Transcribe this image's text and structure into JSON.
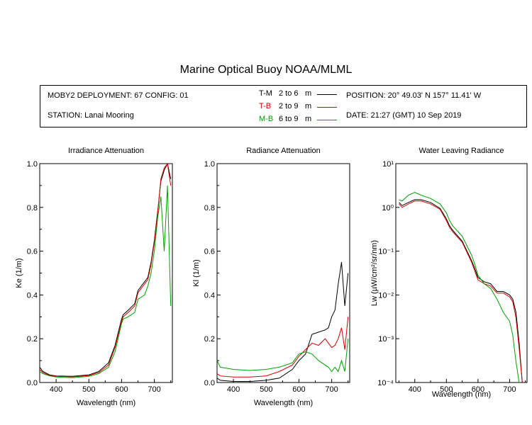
{
  "page_title": "Marine Optical Buoy NOAA/MLML",
  "info": {
    "deployment": "MOBY2 DEPLOYMENT: 67 CONFIG: 01",
    "station": "STATION: Lanai Mooring",
    "position": "POSITION: 20° 49.03' N   157° 11.41' W",
    "date": "DATE: 21:27 (GMT) 10 Sep 2019"
  },
  "legend": [
    {
      "code": "T-M",
      "range": "2 to 6",
      "unit": "m",
      "color": "#000000"
    },
    {
      "code": "T-B",
      "range": "2 to 9",
      "unit": "m",
      "color": "#d40000"
    },
    {
      "code": "M-B",
      "range": "6 to 9",
      "unit": "m",
      "color": "#00a000"
    }
  ],
  "chart_data": [
    {
      "type": "line",
      "title": "Irradiance Attenuation",
      "xlabel": "Wavelength (nm)",
      "ylabel": "Ke  (1/m)",
      "xlim": [
        350,
        755
      ],
      "ylim": [
        0,
        1
      ],
      "xticks": [
        "400",
        "500",
        "600",
        "700"
      ],
      "yticks": [
        "0.0",
        "0.2",
        "0.4",
        "0.6",
        "0.8",
        "1.0"
      ],
      "series": [
        {
          "name": "T-M",
          "color": "#000000",
          "x": [
            350,
            360,
            380,
            400,
            450,
            500,
            530,
            560,
            580,
            600,
            605,
            620,
            640,
            650,
            660,
            670,
            680,
            690,
            700,
            710,
            720,
            730,
            740,
            750
          ],
          "y": [
            0.07,
            0.05,
            0.035,
            0.03,
            0.028,
            0.035,
            0.05,
            0.09,
            0.17,
            0.29,
            0.31,
            0.33,
            0.36,
            0.42,
            0.44,
            0.46,
            0.48,
            0.55,
            0.65,
            0.78,
            0.92,
            0.97,
            1.0,
            0.93
          ]
        },
        {
          "name": "T-B",
          "color": "#d40000",
          "x": [
            350,
            360,
            380,
            400,
            450,
            500,
            530,
            560,
            580,
            600,
            605,
            620,
            640,
            650,
            660,
            670,
            680,
            690,
            700,
            710,
            720,
            730,
            740,
            750
          ],
          "y": [
            0.06,
            0.045,
            0.032,
            0.028,
            0.026,
            0.032,
            0.045,
            0.08,
            0.16,
            0.28,
            0.3,
            0.32,
            0.35,
            0.41,
            0.43,
            0.45,
            0.47,
            0.54,
            0.64,
            0.77,
            0.93,
            0.98,
            1.0,
            0.9
          ]
        },
        {
          "name": "M-B",
          "color": "#00a000",
          "x": [
            350,
            360,
            380,
            400,
            450,
            500,
            530,
            560,
            580,
            600,
            605,
            620,
            640,
            650,
            660,
            670,
            680,
            690,
            700,
            710,
            720,
            730,
            740,
            750
          ],
          "y": [
            0.05,
            0.04,
            0.03,
            0.025,
            0.022,
            0.028,
            0.04,
            0.07,
            0.14,
            0.27,
            0.29,
            0.3,
            0.32,
            0.38,
            0.39,
            0.4,
            0.44,
            0.5,
            0.6,
            0.75,
            0.85,
            0.6,
            0.9,
            0.35
          ]
        }
      ]
    },
    {
      "type": "line",
      "title": "Radiance Attenuation",
      "xlabel": "Wavelength (nm)",
      "ylabel": "Kl  (1/m)",
      "xlim": [
        350,
        755
      ],
      "ylim": [
        0,
        1
      ],
      "xticks": [
        "400",
        "500",
        "600",
        "700"
      ],
      "yticks": [
        "0.0",
        "0.2",
        "0.4",
        "0.6",
        "0.8",
        "1.0"
      ],
      "series": [
        {
          "name": "T-M",
          "color": "#000000",
          "x": [
            350,
            360,
            400,
            450,
            500,
            540,
            580,
            600,
            620,
            640,
            660,
            680,
            690,
            700,
            710,
            720,
            730,
            740,
            750
          ],
          "y": [
            0.02,
            0.01,
            0.005,
            0.005,
            0.01,
            0.02,
            0.06,
            0.1,
            0.13,
            0.22,
            0.23,
            0.24,
            0.25,
            0.3,
            0.33,
            0.45,
            0.55,
            0.35,
            0.5
          ]
        },
        {
          "name": "T-B",
          "color": "#d40000",
          "x": [
            350,
            360,
            400,
            450,
            500,
            540,
            580,
            600,
            620,
            640,
            660,
            680,
            690,
            700,
            710,
            720,
            730,
            740,
            750
          ],
          "y": [
            0.04,
            0.03,
            0.025,
            0.025,
            0.03,
            0.05,
            0.08,
            0.12,
            0.15,
            0.18,
            0.17,
            0.2,
            0.18,
            0.16,
            0.17,
            0.2,
            0.25,
            0.15,
            0.3
          ]
        },
        {
          "name": "M-B",
          "color": "#00a000",
          "x": [
            350,
            360,
            400,
            450,
            500,
            540,
            580,
            600,
            620,
            640,
            660,
            680,
            690,
            700,
            710,
            720,
            730,
            740,
            750
          ],
          "y": [
            0.1,
            0.07,
            0.06,
            0.055,
            0.06,
            0.07,
            0.09,
            0.13,
            0.14,
            0.13,
            0.1,
            0.08,
            0.07,
            0.05,
            0.07,
            0.05,
            0.1,
            0.05,
            0.2
          ]
        }
      ]
    },
    {
      "type": "line",
      "title": "Water Leaving Radiance",
      "xlabel": "Wavelength (nm)",
      "ylabel": "Lw  (µW/cm²/sr/nm)",
      "xlim": [
        340,
        755
      ],
      "ylim": [
        0.0001,
        10
      ],
      "yscale": "log",
      "xticks": [
        "400",
        "500",
        "600",
        "700"
      ],
      "yticks": [
        "10⁻⁴",
        "10⁻³",
        "10⁻²",
        "10⁻¹",
        "10⁰",
        "10¹"
      ],
      "series": [
        {
          "name": "T-M",
          "color": "#000000",
          "x": [
            350,
            360,
            380,
            400,
            420,
            450,
            480,
            500,
            510,
            520,
            550,
            580,
            590,
            600,
            620,
            640,
            660,
            680,
            700,
            710,
            720,
            730,
            740
          ],
          "y": [
            1.3,
            1.1,
            1.3,
            1.5,
            1.5,
            1.3,
            0.95,
            0.55,
            0.38,
            0.3,
            0.17,
            0.06,
            0.04,
            0.025,
            0.02,
            0.018,
            0.012,
            0.012,
            0.01,
            0.008,
            0.004,
            0.0008,
            0.0001
          ]
        },
        {
          "name": "T-B",
          "color": "#d40000",
          "x": [
            350,
            360,
            380,
            400,
            420,
            450,
            480,
            500,
            510,
            520,
            550,
            580,
            590,
            600,
            620,
            640,
            660,
            680,
            700,
            710,
            720,
            730,
            740
          ],
          "y": [
            1.2,
            1.0,
            1.2,
            1.4,
            1.4,
            1.2,
            0.9,
            0.5,
            0.35,
            0.28,
            0.16,
            0.055,
            0.035,
            0.022,
            0.018,
            0.016,
            0.011,
            0.011,
            0.009,
            0.007,
            0.003,
            0.0006,
            0.0001
          ]
        },
        {
          "name": "M-B",
          "color": "#00a000",
          "x": [
            350,
            360,
            380,
            400,
            420,
            450,
            480,
            500,
            510,
            520,
            550,
            580,
            590,
            600,
            620,
            640,
            660,
            680,
            700,
            710,
            720,
            730
          ],
          "y": [
            1.5,
            1.4,
            1.9,
            2.2,
            1.9,
            1.6,
            1.2,
            0.75,
            0.5,
            0.38,
            0.22,
            0.08,
            0.05,
            0.028,
            0.018,
            0.014,
            0.008,
            0.004,
            0.0025,
            0.0012,
            0.0003,
            0.0001
          ]
        }
      ]
    }
  ]
}
